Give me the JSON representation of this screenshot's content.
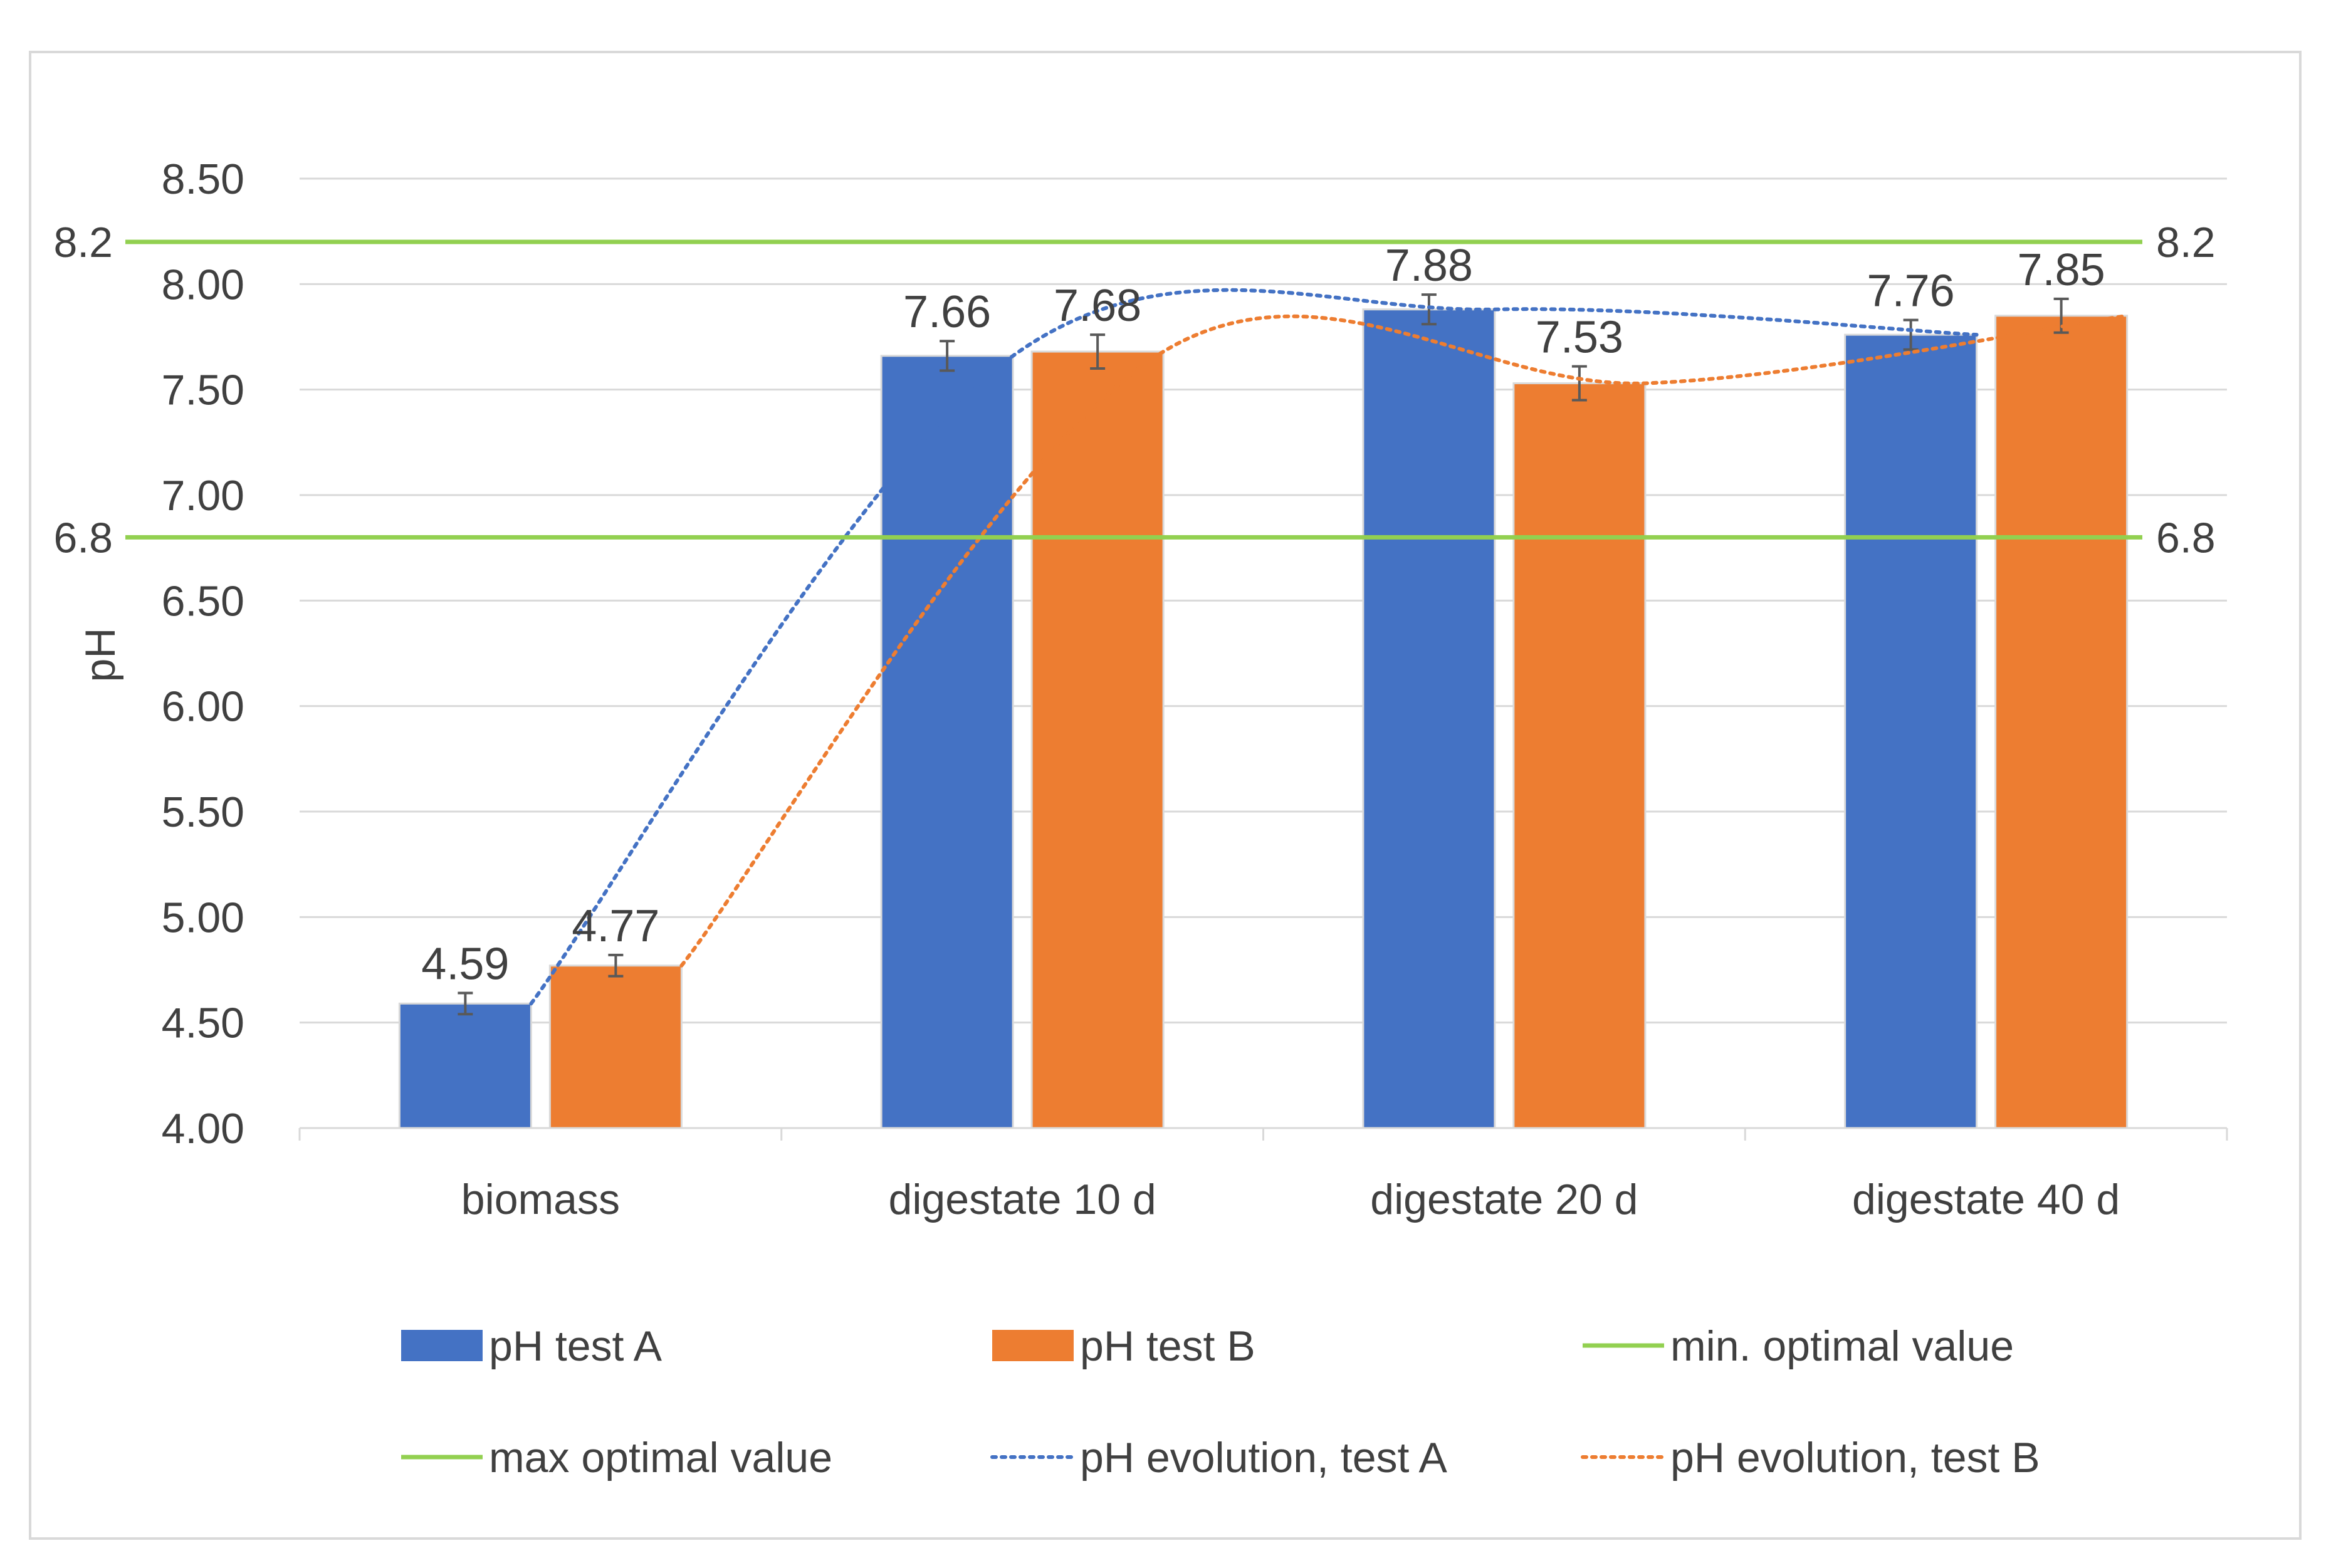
{
  "colors": {
    "test_a": "#4472C4",
    "test_b": "#ED7D31",
    "optimal": "#92D050",
    "gridline": "#D9D9D9",
    "text": "#404040",
    "frame": "#D9D9D9"
  },
  "chart_data": {
    "type": "bar",
    "title": "",
    "xlabel": "",
    "ylabel": "pH",
    "ylim": [
      4.0,
      8.5
    ],
    "ytick_step": 0.5,
    "yticks": [
      "4.00",
      "4.50",
      "5.00",
      "5.50",
      "6.00",
      "6.50",
      "7.00",
      "7.50",
      "8.00",
      "8.50"
    ],
    "grid": true,
    "legend_position": "bottom",
    "categories": [
      "biomass",
      "digestate 10 d",
      "digestate 20 d",
      "digestate 40 d"
    ],
    "series": [
      {
        "name": "pH test A",
        "kind": "bar",
        "color": "#4472C4",
        "values": [
          4.59,
          7.66,
          7.88,
          7.76
        ],
        "labels": [
          "4.59",
          "7.66",
          "7.88",
          "7.76"
        ],
        "error": [
          0.05,
          0.07,
          0.07,
          0.07
        ]
      },
      {
        "name": "pH test B",
        "kind": "bar",
        "color": "#ED7D31",
        "values": [
          4.77,
          7.68,
          7.53,
          7.85
        ],
        "labels": [
          "4.77",
          "7.68",
          "7.53",
          "7.85"
        ],
        "error": [
          0.05,
          0.08,
          0.08,
          0.08
        ]
      }
    ],
    "reference_lines": [
      {
        "name": "min. optimal value",
        "value": 6.8,
        "label": "6.8",
        "color": "#92D050"
      },
      {
        "name": "max optimal value",
        "value": 8.2,
        "label": "8.2",
        "color": "#92D050"
      }
    ],
    "trendlines": [
      {
        "name": "pH evolution, test A",
        "series": "pH test A",
        "color": "#4472C4",
        "style": "dotted"
      },
      {
        "name": "pH evolution, test B",
        "series": "pH test B",
        "color": "#ED7D31",
        "style": "dotted"
      }
    ],
    "legend": [
      {
        "label": "pH test A",
        "symbol": "bar",
        "color": "#4472C4"
      },
      {
        "label": "pH test B",
        "symbol": "bar",
        "color": "#ED7D31"
      },
      {
        "label": "min. optimal value",
        "symbol": "line",
        "color": "#92D050"
      },
      {
        "label": "max optimal value",
        "symbol": "line",
        "color": "#92D050"
      },
      {
        "label": "pH evolution, test A",
        "symbol": "dotted",
        "color": "#4472C4"
      },
      {
        "label": "pH evolution, test B",
        "symbol": "dotted",
        "color": "#ED7D31"
      }
    ]
  }
}
